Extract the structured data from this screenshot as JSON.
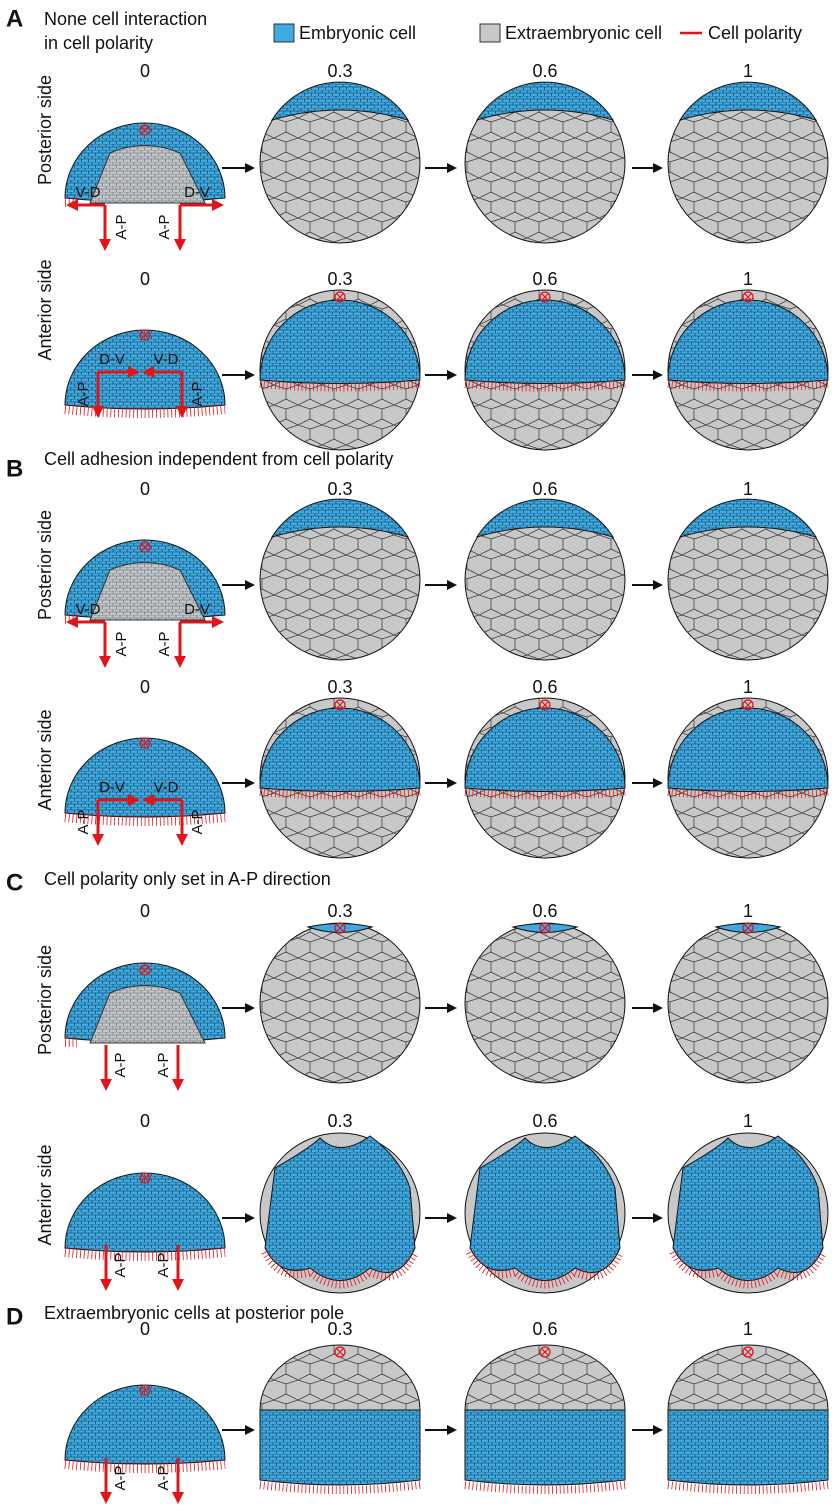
{
  "legend": [
    "Embryonic cell",
    "Extraembryonic cell",
    "Cell polarity"
  ],
  "panels": [
    {
      "letter": "A",
      "title": [
        "None cell interaction",
        "in cell polarity"
      ],
      "rows": [
        {
          "label": "Posterior side",
          "times": [
            "0",
            "0.3",
            "0.6",
            "1"
          ],
          "axes": [
            "V-D",
            "A-P",
            "D-V",
            "A-P"
          ]
        },
        {
          "label": "Anterior side",
          "times": [
            "0",
            "0.3",
            "0.6",
            "1"
          ],
          "axes": [
            "D-V",
            "A-P",
            "V-D",
            "A-P"
          ]
        }
      ]
    },
    {
      "letter": "B",
      "title": [
        "Cell adhesion independent from cell polarity"
      ],
      "rows": [
        {
          "label": "Posterior side",
          "times": [
            "0",
            "0.3",
            "0.6",
            "1"
          ],
          "axes": [
            "V-D",
            "A-P",
            "D-V",
            "A-P"
          ]
        },
        {
          "label": "Anterior side",
          "times": [
            "0",
            "0.3",
            "0.6",
            "1"
          ],
          "axes": [
            "D-V",
            "A-P",
            "V-D",
            "A-P"
          ]
        }
      ]
    },
    {
      "letter": "C",
      "title": [
        "Cell polarity only set in A-P direction"
      ],
      "rows": [
        {
          "label": "Posterior side",
          "times": [
            "0",
            "0.3",
            "0.6",
            "1"
          ],
          "axes": [
            "A-P",
            "A-P"
          ]
        },
        {
          "label": "Anterior side",
          "times": [
            "0",
            "0.3",
            "0.6",
            "1"
          ],
          "axes": [
            "A-P",
            "A-P"
          ]
        }
      ]
    },
    {
      "letter": "D",
      "title": [
        "Extraembryonic cells at posterior pole"
      ],
      "rows": [
        {
          "times": [
            "0",
            "0.3",
            "0.6",
            "1"
          ],
          "axes": [
            "A-P",
            "A-P"
          ]
        }
      ]
    }
  ]
}
